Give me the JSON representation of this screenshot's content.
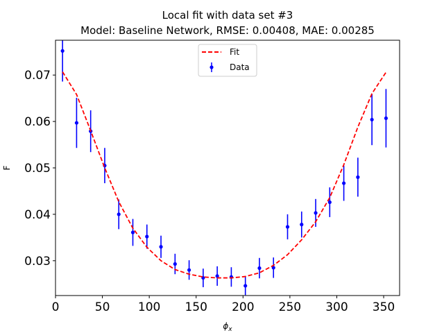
{
  "chart_data": {
    "type": "scatter",
    "title_line1": "Local fit with data set #3",
    "title_line2": "Model: Baseline Network, RMSE: 0.00408, MAE: 0.00285",
    "xlabel": "ϕx",
    "xlabel_main": "ϕ",
    "xlabel_sub": "x",
    "ylabel": "F",
    "xlim": [
      0,
      367
    ],
    "ylim": [
      0.0225,
      0.0775
    ],
    "xticks": [
      0,
      50,
      100,
      150,
      200,
      250,
      300,
      350
    ],
    "yticks": [
      0.03,
      0.04,
      0.05,
      0.06,
      0.07
    ],
    "ytick_labels": [
      "0.03",
      "0.04",
      "0.05",
      "0.06",
      "0.07"
    ],
    "grid": false,
    "legend_position": "top-center",
    "series": [
      {
        "name": "Fit",
        "kind": "line",
        "style": "dashed",
        "color": "#ff0000",
        "x": [
          7.5,
          22.5,
          37.5,
          52.5,
          67.5,
          82.5,
          97.5,
          112.5,
          127.5,
          142.5,
          157.5,
          172.5,
          187.5,
          202.5,
          217.5,
          232.5,
          247.5,
          262.5,
          277.5,
          292.5,
          307.5,
          322.5,
          337.5,
          352.5
        ],
        "y": [
          0.0707,
          0.0658,
          0.058,
          0.05,
          0.0427,
          0.037,
          0.0329,
          0.03,
          0.0281,
          0.0271,
          0.0265,
          0.0263,
          0.0263,
          0.0266,
          0.0274,
          0.029,
          0.0313,
          0.0345,
          0.0384,
          0.0436,
          0.0507,
          0.0588,
          0.066,
          0.0706
        ]
      },
      {
        "name": "Data",
        "kind": "errorbar",
        "color": "#0000ff",
        "x": [
          7.5,
          22.5,
          37.5,
          52.5,
          67.5,
          82.5,
          97.5,
          112.5,
          127.5,
          142.5,
          157.5,
          172.5,
          187.5,
          202.5,
          217.5,
          232.5,
          247.5,
          262.5,
          277.5,
          292.5,
          307.5,
          322.5,
          337.5,
          352.5
        ],
        "y": [
          0.0752,
          0.0597,
          0.0579,
          0.0505,
          0.04,
          0.0361,
          0.0352,
          0.033,
          0.0293,
          0.028,
          0.0263,
          0.0267,
          0.0265,
          0.0246,
          0.0284,
          0.0285,
          0.0373,
          0.0378,
          0.0403,
          0.0426,
          0.0467,
          0.048,
          0.0604,
          0.0607
        ],
        "yerr": [
          0.0066,
          0.0054,
          0.0045,
          0.0038,
          0.0032,
          0.0029,
          0.0026,
          0.0024,
          0.0022,
          0.0021,
          0.002,
          0.0021,
          0.0021,
          0.002,
          0.0022,
          0.0022,
          0.0027,
          0.0028,
          0.003,
          0.0032,
          0.0038,
          0.0042,
          0.0055,
          0.0063
        ]
      }
    ]
  }
}
